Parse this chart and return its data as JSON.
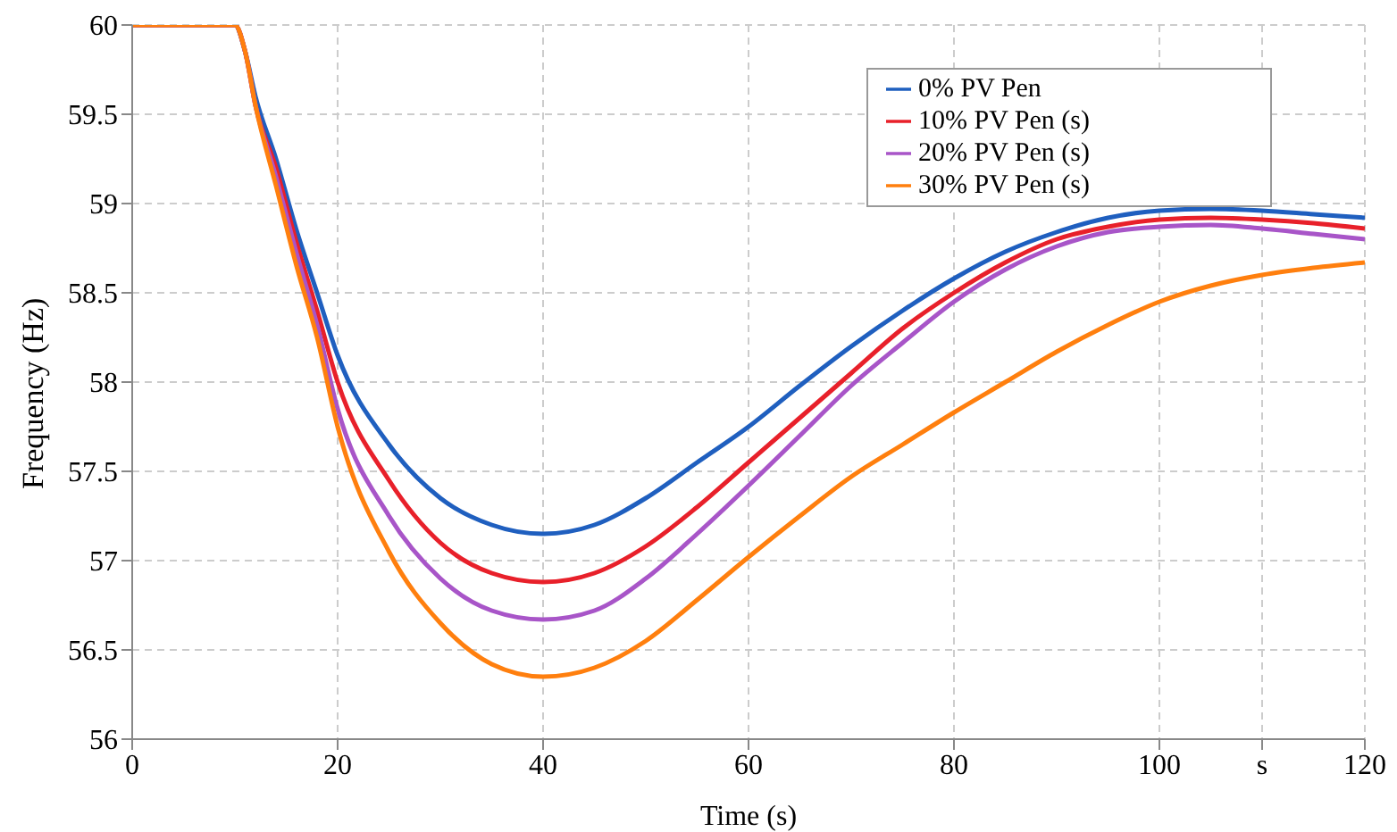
{
  "chart_data": {
    "type": "line",
    "xlabel": "Time (s)",
    "ylabel": "Frequency (Hz)",
    "x": [
      0,
      10,
      11,
      12,
      14,
      16,
      18,
      20,
      25,
      30,
      35,
      40,
      45,
      50,
      55,
      60,
      65,
      70,
      75,
      80,
      85,
      90,
      95,
      100,
      105,
      110,
      115,
      120
    ],
    "xlim": [
      0,
      120
    ],
    "xticks": [
      0,
      20,
      40,
      60,
      80,
      100,
      {
        "value": 110,
        "label": "s"
      },
      120
    ],
    "ylim": [
      56,
      60
    ],
    "yticks": [
      56,
      56.5,
      57,
      57.5,
      58,
      58.5,
      59,
      59.5,
      60
    ],
    "grid": true,
    "legend": "top right",
    "marker": "none",
    "line_style": "solid",
    "series": [
      {
        "name": "0% PV Pen",
        "color": "#1f5fbf",
        "values": [
          60,
          60,
          59.85,
          59.6,
          59.25,
          58.85,
          58.5,
          58.15,
          57.65,
          57.35,
          57.2,
          57.15,
          57.2,
          57.35,
          57.55,
          57.75,
          57.98,
          58.2,
          58.4,
          58.58,
          58.73,
          58.84,
          58.92,
          58.96,
          58.97,
          58.96,
          58.94,
          58.92
        ]
      },
      {
        "name": "10% PV Pen (s)",
        "color": "#e8202a",
        "values": [
          60,
          60,
          59.85,
          59.55,
          59.2,
          58.78,
          58.4,
          58.0,
          57.45,
          57.1,
          56.93,
          56.88,
          56.93,
          57.08,
          57.3,
          57.55,
          57.8,
          58.05,
          58.3,
          58.5,
          58.67,
          58.8,
          58.87,
          58.91,
          58.92,
          58.91,
          58.89,
          58.86
        ]
      },
      {
        "name": "20% PV Pen (s)",
        "color": "#a855c8",
        "values": [
          60,
          60,
          59.85,
          59.55,
          59.15,
          58.72,
          58.32,
          57.85,
          57.25,
          56.9,
          56.72,
          56.67,
          56.72,
          56.9,
          57.15,
          57.42,
          57.7,
          57.98,
          58.22,
          58.45,
          58.63,
          58.76,
          58.84,
          58.87,
          58.88,
          58.86,
          58.83,
          58.8
        ]
      },
      {
        "name": "30% PV Pen (s)",
        "color": "#ff7f0e",
        "values": [
          60,
          60,
          59.85,
          59.55,
          59.1,
          58.65,
          58.25,
          57.75,
          57.05,
          56.65,
          56.42,
          56.35,
          56.4,
          56.55,
          56.78,
          57.02,
          57.25,
          57.47,
          57.65,
          57.83,
          58.0,
          58.17,
          58.32,
          58.45,
          58.54,
          58.6,
          58.64,
          58.67
        ]
      }
    ]
  }
}
